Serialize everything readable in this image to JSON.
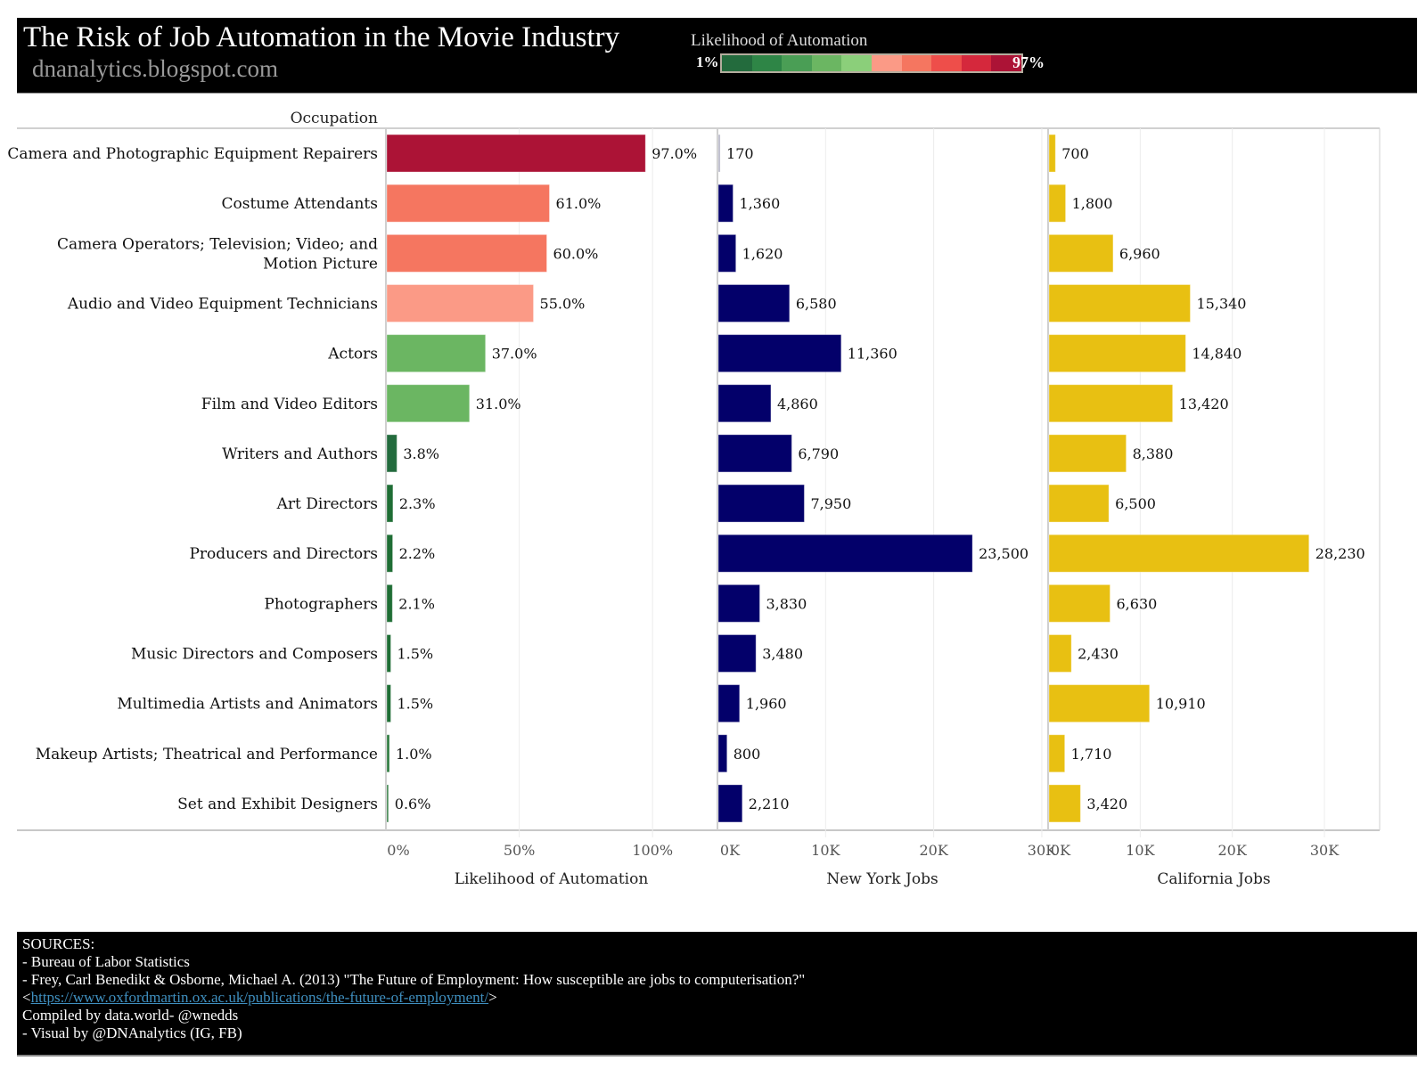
{
  "header": {
    "title": "The Risk of Job Automation in the Movie Industry",
    "subtitle": "dnanalytics.blogspot.com",
    "legend": {
      "title": "Likelihood of Automation",
      "min_label": "1%",
      "max_label": "97%",
      "colors": [
        "#236b3d",
        "#2e8546",
        "#4a9e55",
        "#6bb662",
        "#8bcf7a",
        "#fb9a86",
        "#f57660",
        "#ee4e4a",
        "#d5283c",
        "#ac1336"
      ]
    }
  },
  "chart_data": {
    "type": "bar",
    "orientation": "horizontal",
    "row_header": "Occupation",
    "categories": [
      "Camera and Photographic Equipment Repairers",
      "Costume Attendants",
      "Camera Operators; Television; Video; and Motion Picture",
      "Audio and Video Equipment Technicians",
      "Actors",
      "Film and Video Editors",
      "Writers and Authors",
      "Art Directors",
      "Producers and Directors",
      "Photographers",
      "Music Directors and Composers",
      "Multimedia Artists and Animators",
      "Makeup Artists; Theatrical and Performance",
      "Set and Exhibit Designers"
    ],
    "category_lines": [
      [
        "Camera and Photographic Equipment Repairers"
      ],
      [
        "Costume Attendants"
      ],
      [
        "Camera Operators; Television; Video; and",
        "Motion Picture"
      ],
      [
        "Audio and Video Equipment Technicians"
      ],
      [
        "Actors"
      ],
      [
        "Film and Video Editors"
      ],
      [
        "Writers and Authors"
      ],
      [
        "Art Directors"
      ],
      [
        "Producers and Directors"
      ],
      [
        "Photographers"
      ],
      [
        "Music Directors and Composers"
      ],
      [
        "Multimedia Artists and Animators"
      ],
      [
        "Makeup Artists; Theatrical and Performance"
      ],
      [
        "Set and Exhibit Designers"
      ]
    ],
    "panels": [
      {
        "name": "Likelihood of Automation",
        "xlabel": "Likelihood of Automation",
        "values": [
          97.0,
          61.0,
          60.0,
          55.0,
          37.0,
          31.0,
          3.8,
          2.3,
          2.2,
          2.1,
          1.5,
          1.5,
          1.0,
          0.6
        ],
        "labels": [
          "97.0%",
          "61.0%",
          "60.0%",
          "55.0%",
          "37.0%",
          "31.0%",
          "3.8%",
          "2.3%",
          "2.2%",
          "2.1%",
          "1.5%",
          "1.5%",
          "1.0%",
          "0.6%"
        ],
        "xlim": [
          0,
          124
        ],
        "ticks": [
          0,
          50,
          100
        ],
        "tick_labels": [
          "0%",
          "50%",
          "100%"
        ],
        "color_mode": "diverging",
        "color_range": [
          1,
          97
        ]
      },
      {
        "name": "New York Jobs",
        "xlabel": "New York Jobs",
        "values": [
          170,
          1360,
          1620,
          6580,
          11360,
          4860,
          6790,
          7950,
          23500,
          3830,
          3480,
          1960,
          800,
          2210
        ],
        "labels": [
          "170",
          "1,360",
          "1,620",
          "6,580",
          "11,360",
          "4,860",
          "6,790",
          "7,950",
          "23,500",
          "3,830",
          "3,480",
          "1,960",
          "800",
          "2,210"
        ],
        "xlim": [
          0,
          30500
        ],
        "ticks": [
          0,
          10000,
          20000,
          30000
        ],
        "tick_labels": [
          "0K",
          "10K",
          "20K",
          "30K"
        ],
        "color": "#03006a",
        "highlight": {
          "index": 0,
          "color": "#b8b8c8"
        }
      },
      {
        "name": "California Jobs",
        "xlabel": "California Jobs",
        "values": [
          700,
          1800,
          6960,
          15340,
          14840,
          13420,
          8380,
          6500,
          28230,
          6630,
          2430,
          10910,
          1710,
          3420
        ],
        "labels": [
          "700",
          "1,800",
          "6,960",
          "15,340",
          "14,840",
          "13,420",
          "8,380",
          "6,500",
          "28,230",
          "6,630",
          "2,430",
          "10,910",
          "1,710",
          "3,420"
        ],
        "xlim": [
          0,
          36000
        ],
        "ticks": [
          0,
          10000,
          20000,
          30000
        ],
        "tick_labels": [
          "0K",
          "10K",
          "20K",
          "30K"
        ],
        "color": "#e8c012"
      }
    ],
    "grid": true
  },
  "footer": {
    "heading": "SOURCES:",
    "line1": "- Bureau of Labor Statistics",
    "line2": "- Frey, Carl Benedikt & Osborne, Michael A. (2013) \"The Future of Employment: How susceptible are jobs to computerisation?\"",
    "link_prefix": " <",
    "link_text": "https://www.oxfordmartin.ox.ac.uk/publications/the-future-of-employment/",
    "link_suffix": ">",
    "line4": " Compiled by data.world- @wnedds",
    "line5": "- Visual by @DNAnalytics (IG, FB)"
  }
}
